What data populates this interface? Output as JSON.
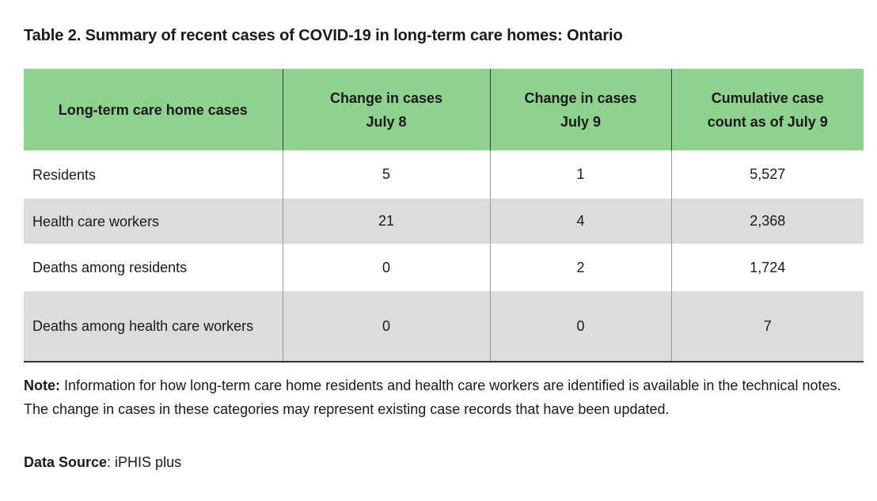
{
  "title": "Table 2. Summary of recent cases of COVID-19 in long-term care homes: Ontario",
  "table": {
    "headers": [
      {
        "lines": [
          "Long-term care home cases"
        ]
      },
      {
        "lines": [
          "Change in cases",
          "July 8"
        ]
      },
      {
        "lines": [
          "Change in cases",
          "July 9"
        ]
      },
      {
        "lines": [
          "Cumulative case",
          "count as of July 9"
        ]
      }
    ],
    "rows": [
      {
        "label": "Residents",
        "change_july8": "5",
        "change_july9": "1",
        "cumulative": "5,527"
      },
      {
        "label": "Health care workers",
        "change_july8": "21",
        "change_july9": "4",
        "cumulative": "2,368"
      },
      {
        "label": "Deaths among residents",
        "change_july8": "0",
        "change_july9": "2",
        "cumulative": "1,724"
      },
      {
        "label": "Deaths among health care workers",
        "change_july8": "0",
        "change_july9": "0",
        "cumulative": "7"
      }
    ]
  },
  "note": {
    "label": "Note:",
    "text": " Information for how long-term care home residents and health care workers are identified is available in the technical notes. The change in cases in these categories may represent existing case records that have been updated."
  },
  "source": {
    "label": "Data Source",
    "text": ": iPHIS plus"
  },
  "colors": {
    "header_bg": "#8fd18f",
    "striped_row_bg": "#dcdcdc"
  }
}
